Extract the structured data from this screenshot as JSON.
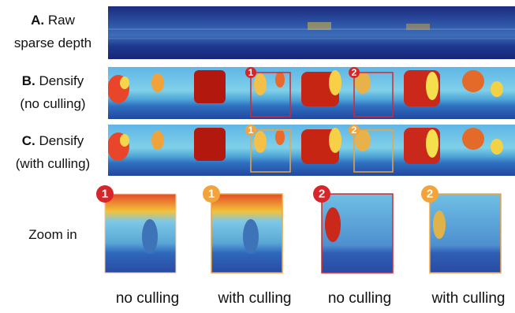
{
  "rows": [
    {
      "letter": "A.",
      "lines": [
        "Raw",
        "sparse depth"
      ]
    },
    {
      "letter": "B.",
      "lines": [
        "Densify",
        "(no culling)"
      ],
      "badges": [
        "1",
        "2"
      ]
    },
    {
      "letter": "C.",
      "lines": [
        "Densify",
        "(with culling)"
      ],
      "badges": [
        "1",
        "2"
      ]
    }
  ],
  "zoom": {
    "label": "Zoom in",
    "panels": [
      {
        "badge": "1",
        "caption": "no culling"
      },
      {
        "badge": "1",
        "caption": "with culling"
      },
      {
        "badge": "2",
        "caption": "no culling"
      },
      {
        "badge": "2",
        "caption": "with culling"
      }
    ]
  }
}
